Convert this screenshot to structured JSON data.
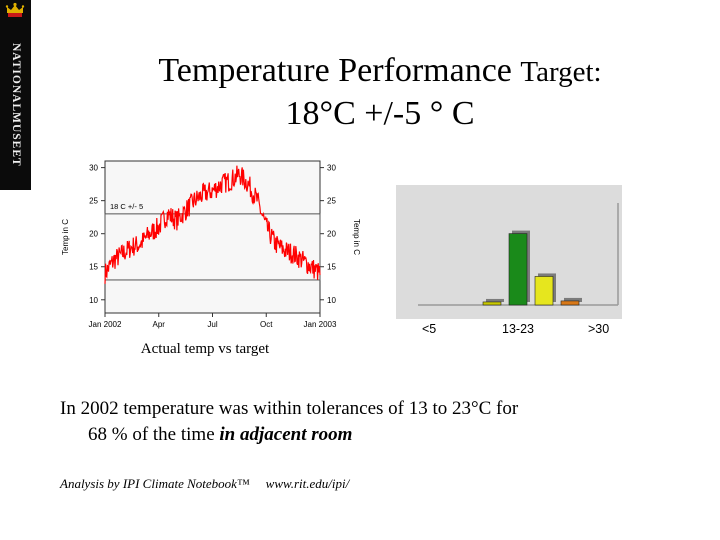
{
  "brand": {
    "name": "NATIONALMUSEET"
  },
  "slide": {
    "title_line1_main": "Temperature Performance ",
    "title_line1_small": "Target:",
    "title_line2": "18°C +/-5 ° C"
  },
  "charts": {
    "chart_data": [
      {
        "type": "line",
        "title": "",
        "xlabel": "",
        "ylabel": "Temp in C",
        "ylabel_right": "Temp in C",
        "x_tick_labels": [
          "Jan 2002",
          "Apr",
          "Jul",
          "Oct",
          "Jan 2003"
        ],
        "y_ticks": [
          10,
          15,
          20,
          25,
          30
        ],
        "ylim": [
          8,
          31
        ],
        "target_band": {
          "label": "18 C  +/- 5",
          "low": 13,
          "high": 23
        },
        "series": [
          {
            "x_months": [
              0,
              0.5,
              1,
              1.5,
              2,
              2.5,
              3,
              3.5,
              4,
              4.5,
              5,
              5.5,
              6,
              6.5,
              7,
              7.5,
              8,
              8.5,
              9,
              9.5,
              10,
              10.5,
              11,
              11.5,
              12
            ],
            "values": [
              14,
              16,
              17,
              18,
              18.5,
              20,
              21,
              23,
              22,
              23.5,
              25,
              26,
              26.5,
              27.5,
              28,
              29,
              27.5,
              25,
              21,
              18.5,
              17.5,
              17,
              16,
              15,
              14
            ]
          }
        ],
        "caption": "Actual temp vs target",
        "colors": {
          "line": "#ff0000",
          "band": "#555555",
          "plot_bg": "#f7f7f7"
        }
      },
      {
        "type": "bar",
        "categories": [
          "<5",
          "13-23",
          ">30"
        ],
        "bars": [
          {
            "value": 1.5,
            "color": "#c9c900"
          },
          {
            "value": 35,
            "color": "#1a8a1a"
          },
          {
            "value": 14,
            "color": "#e6e61e"
          },
          {
            "value": 2,
            "color": "#d87818"
          }
        ],
        "ylim": [
          0,
          50
        ],
        "colors": {
          "plot_bg": "#dcdcdc"
        }
      }
    ]
  },
  "body": {
    "line1": "In 2002 temperature was within tolerances of 13 to 23°C for",
    "line2_plain": "68 % of the time ",
    "line2_emph": "in adjacent room"
  },
  "footer": {
    "analysis": "Analysis by IPI Climate Notebook™",
    "url": "www.rit.edu/ipi/"
  }
}
